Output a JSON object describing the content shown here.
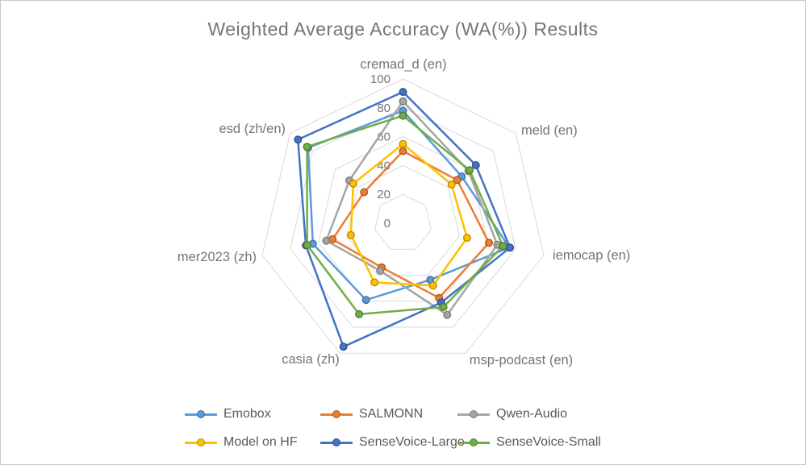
{
  "title": "Weighted Average Accuracy (WA(%)) Results",
  "chart_data": {
    "type": "radar",
    "title": "Weighted Average Accuracy (WA(%)) Results",
    "axis_min": 0,
    "axis_max": 100,
    "grid_step": 20,
    "ticks": [
      "0",
      "20",
      "40",
      "60",
      "80",
      "100"
    ],
    "tick_values": [
      0,
      20,
      40,
      60,
      80,
      100
    ],
    "grid": true,
    "legend_position": "bottom",
    "categories": [
      "cremad_d (en)",
      "meld (en)",
      "iemocap (en)",
      "msp-podcast (en)",
      "casia (zh)",
      "mer2023 (zh)",
      "esd  (zh/en)"
    ],
    "series": [
      {
        "name": "Emobox",
        "color": "#5B9BD5",
        "marker_stroke": "#41719C",
        "values": [
          78,
          52,
          75.5,
          43.5,
          59,
          64,
          84
        ]
      },
      {
        "name": "SALMONN",
        "color": "#ED7D31",
        "marker_stroke": "#AE5A21",
        "values": [
          50,
          48,
          61,
          57.5,
          34,
          50,
          34.5
        ]
      },
      {
        "name": "Qwen-Audio",
        "color": "#A5A5A5",
        "marker_stroke": "#7B7B7B",
        "values": [
          84.5,
          58,
          67,
          70.5,
          36.5,
          54.5,
          47.5
        ]
      },
      {
        "name": "Model on HF",
        "color": "#FFC000",
        "marker_stroke": "#BC8C00",
        "values": [
          55,
          43,
          45.5,
          48,
          45.5,
          37,
          44
        ]
      },
      {
        "name": "SenseVoice-Large",
        "color": "#4472C4",
        "marker_stroke": "#2F528F",
        "values": [
          91,
          64.5,
          76,
          61,
          95,
          69,
          93
        ]
      },
      {
        "name": "SenseVoice-Small",
        "color": "#70AD47",
        "marker_stroke": "#507E32",
        "values": [
          74.5,
          59,
          71,
          64.5,
          70,
          68,
          85
        ]
      }
    ]
  },
  "legend": {
    "items": [
      "Emobox",
      "SALMONN",
      "Qwen-Audio",
      "Model on HF",
      "SenseVoice-Large",
      "SenseVoice-Small"
    ]
  }
}
